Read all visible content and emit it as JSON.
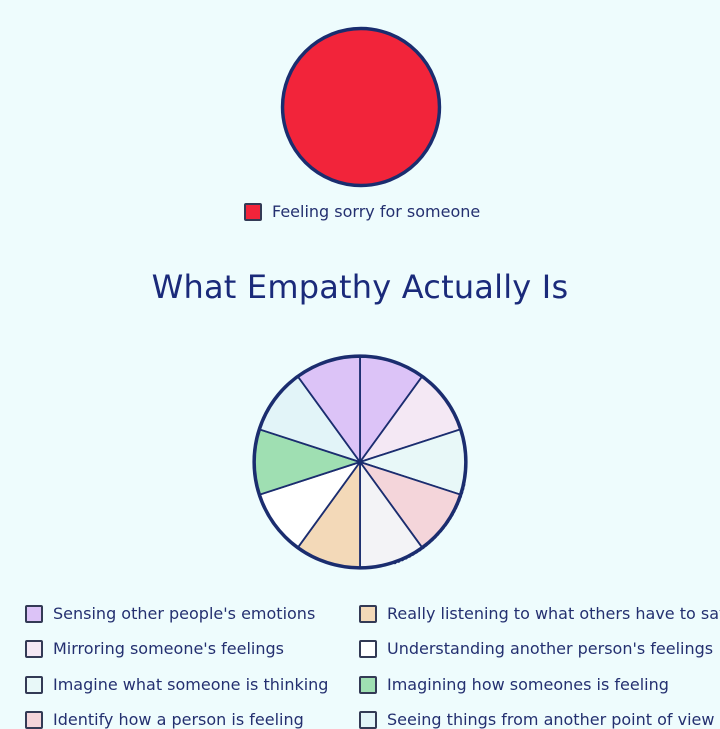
{
  "chart_data": [
    {
      "type": "pie",
      "title": "",
      "slices": [
        {
          "label": "Feeling sorry for someone",
          "value": 100,
          "color": "#f2243a"
        }
      ],
      "legend_placement": "bottom"
    },
    {
      "type": "pie",
      "title": "What Empathy Actually Is",
      "slices": [
        {
          "label": "Sensing other people's emotions",
          "value": 10,
          "color": "#dcc3f7"
        },
        {
          "label": "Mirroring someone's feelings",
          "value": 10,
          "color": "#f4e8f4"
        },
        {
          "label": "Imagine what someone is thinking",
          "value": 10,
          "color": "#e8f8f8"
        },
        {
          "label": "Identify how a person is feeling",
          "value": 10,
          "color": "#f4d5da"
        },
        {
          "label": "Understanding another person's feelings",
          "value": 10,
          "color": "#f3f3f6"
        },
        {
          "label": "Really listening to what others have to say",
          "value": 10,
          "color": "#f3d9b8"
        },
        {
          "label": "Understanding another person's feelings",
          "value": 10,
          "color": "#ffffff"
        },
        {
          "label": "Imagining how someones is feeling",
          "value": 10,
          "color": "#9fdfb2"
        },
        {
          "label": "Seeing things from another point of view",
          "value": 10,
          "color": "#e2f4f8"
        },
        {
          "label": "Sensing other people's emotions",
          "value": 10,
          "color": "#dcc3f7"
        }
      ],
      "legend": [
        {
          "label": "Sensing other people's emotions",
          "color": "#dcc3f7"
        },
        {
          "label": "Really listening to what others have to say",
          "color": "#f3d9b8"
        },
        {
          "label": "Mirroring someone's feelings",
          "color": "#f4e8f4"
        },
        {
          "label": "Understanding another person's feelings",
          "color": "#ffffff"
        },
        {
          "label": "Imagine what someone is thinking",
          "color": "#e8f8f8"
        },
        {
          "label": "Imagining how someones is feeling",
          "color": "#9fdfb2"
        },
        {
          "label": "Identify how a person is feeling",
          "color": "#f4d5da"
        },
        {
          "label": "Seeing things from another point of view",
          "color": "#e2f4f8"
        }
      ],
      "legend_placement": "bottom"
    }
  ]
}
